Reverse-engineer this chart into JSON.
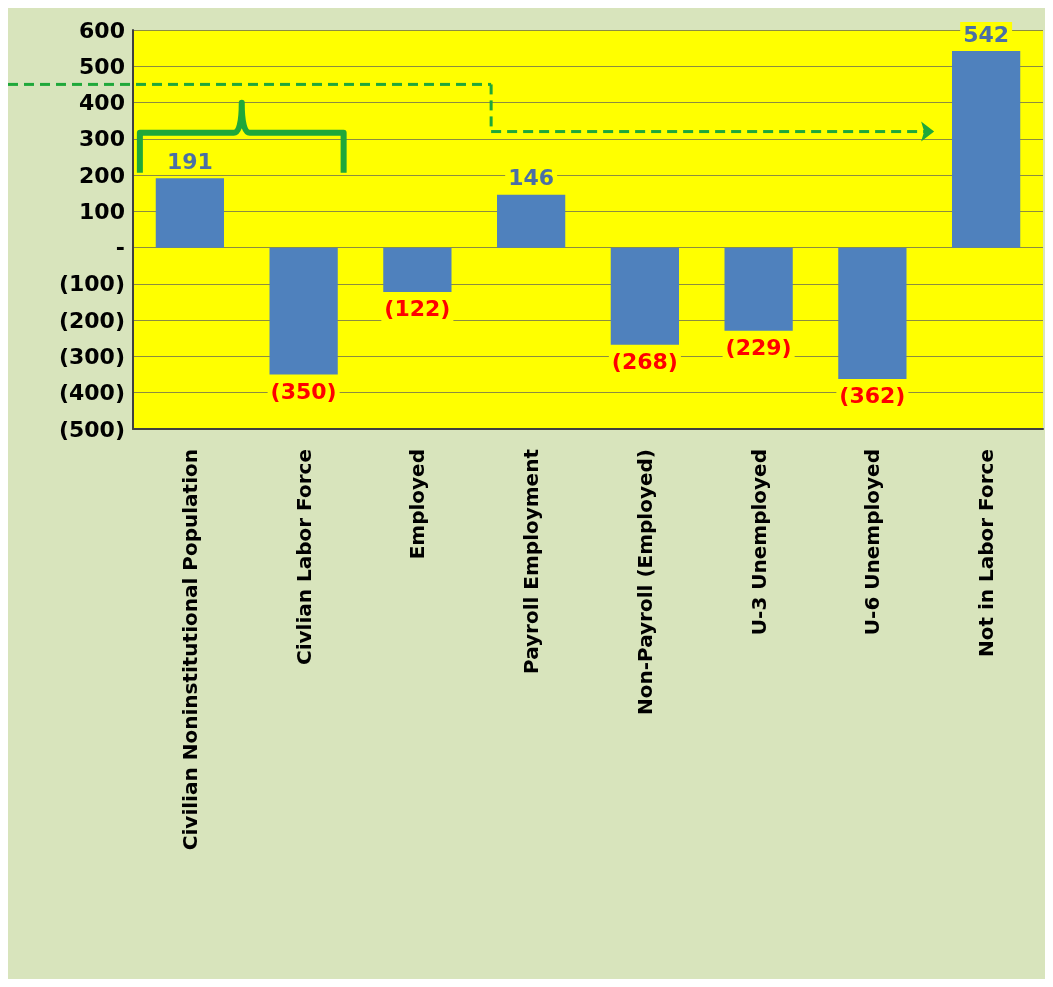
{
  "chart_data": {
    "type": "bar",
    "categories": [
      "Civilian Noninstitutional Population",
      "Civlian Labor Force",
      "Employed",
      "Payroll Employment",
      "Non-Payroll (Employed)",
      "U-3 Unemployed",
      "U-6 Unemployed",
      "Not in Labor Force"
    ],
    "values": [
      191,
      -350,
      -122,
      146,
      -268,
      -229,
      -362,
      542
    ],
    "value_labels": [
      "191",
      "(350)",
      "(122)",
      "146",
      "(268)",
      "(229)",
      "(362)",
      "542"
    ],
    "color": "#4f81bd",
    "ylim": [
      -500,
      600
    ],
    "yticks": [
      {
        "value": -500,
        "label": "(500)"
      },
      {
        "value": -400,
        "label": "(400)"
      },
      {
        "value": -300,
        "label": "(300)"
      },
      {
        "value": -200,
        "label": "(200)"
      },
      {
        "value": -100,
        "label": "(100)"
      },
      {
        "value": 0,
        "label": "-"
      },
      100,
      200,
      300,
      400,
      500,
      600
    ],
    "grid": "y"
  }
}
